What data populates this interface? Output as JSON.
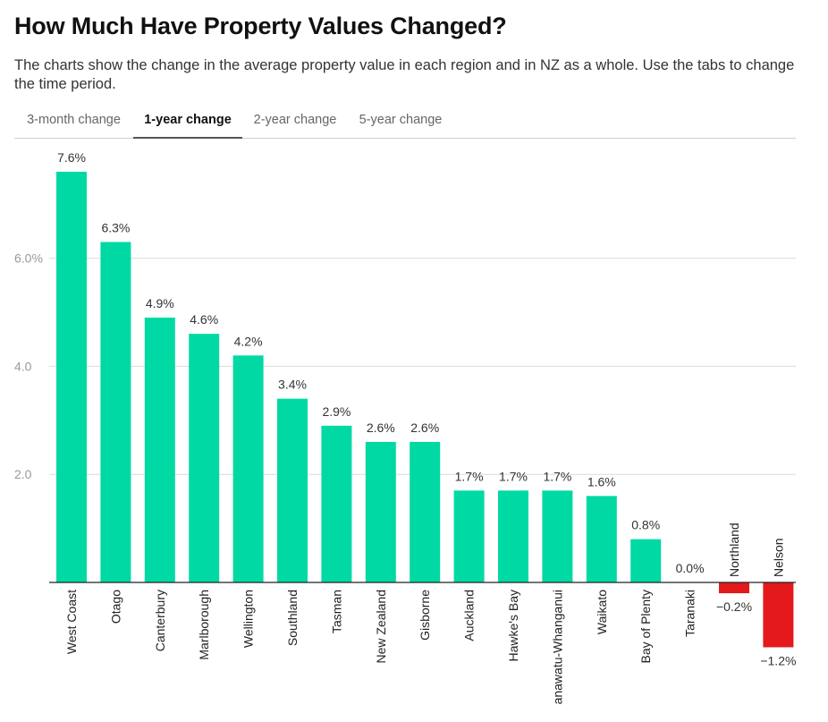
{
  "header": {
    "title": "How Much Have Property Values Changed?",
    "subtitle": "The charts show the change in the average property value in each region and in NZ as a whole. Use the tabs to change the time period."
  },
  "tabs": [
    {
      "label": "3-month change",
      "active": false
    },
    {
      "label": "1-year change",
      "active": true
    },
    {
      "label": "2-year change",
      "active": false
    },
    {
      "label": "5-year change",
      "active": false
    }
  ],
  "colors": {
    "positive": "#00d9a3",
    "negative": "#e3191c",
    "gridline": "#dcdcdc",
    "axis": "#222222"
  },
  "chart_data": {
    "type": "bar",
    "title": "",
    "xlabel": "",
    "ylabel": "",
    "categories": [
      "West Coast",
      "Otago",
      "Canterbury",
      "Marlborough",
      "Wellington",
      "Southland",
      "Tasman",
      "New Zealand",
      "Gisborne",
      "Auckland",
      "Hawke's Bay",
      "anawatu-Whanganui",
      "Waikato",
      "Bay of Plenty",
      "Taranaki",
      "Northland",
      "Nelson"
    ],
    "values": [
      7.6,
      6.3,
      4.9,
      4.6,
      4.2,
      3.4,
      2.9,
      2.6,
      2.6,
      1.7,
      1.7,
      1.7,
      1.6,
      0.8,
      0.0,
      -0.2,
      -1.2
    ],
    "value_labels": [
      "7.6%",
      "6.3%",
      "4.9%",
      "4.6%",
      "4.2%",
      "3.4%",
      "2.9%",
      "2.6%",
      "2.6%",
      "1.7%",
      "1.7%",
      "1.7%",
      "1.6%",
      "0.8%",
      "0.0%",
      "−0.2%",
      "−1.2%"
    ],
    "yticks": [
      2.0,
      4.0,
      6.0
    ],
    "ytick_labels": [
      "2.0",
      "4.0",
      "6.0%"
    ],
    "ylim": [
      -1.2,
      7.6
    ],
    "grid": true,
    "legend": "none"
  }
}
